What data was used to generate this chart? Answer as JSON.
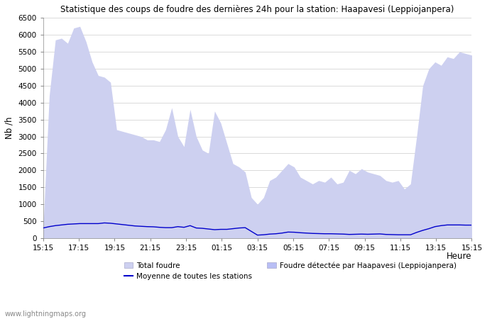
{
  "title": "Statistique des coups de foudre des dernières 24h pour la station: Haapavesi (Leppiojanpera)",
  "xlabel": "Heure",
  "ylabel": "Nb /h",
  "ylim": [
    0,
    6500
  ],
  "yticks": [
    0,
    500,
    1000,
    1500,
    2000,
    2500,
    3000,
    3500,
    4000,
    4500,
    5000,
    5500,
    6000,
    6500
  ],
  "xtick_labels": [
    "15:15",
    "17:15",
    "19:15",
    "21:15",
    "23:15",
    "01:15",
    "03:15",
    "05:15",
    "07:15",
    "09:15",
    "11:15",
    "13:15",
    "15:15"
  ],
  "color_total": "#cdd0f0",
  "color_local": "#b8bef5",
  "color_mean": "#0000cc",
  "watermark": "www.lightningmaps.org",
  "legend_labels": [
    "Total foudre",
    "Moyenne de toutes les stations",
    "Foudre détectée par Haapavesi (Leppiojanpera)"
  ],
  "total_foudre": [
    300,
    4200,
    5850,
    5900,
    5750,
    6200,
    6250,
    5800,
    5200,
    4800,
    4750,
    4600,
    3200,
    3150,
    3100,
    3050,
    3000,
    2900,
    2900,
    2850,
    3200,
    3850,
    3000,
    2700,
    3800,
    3000,
    2600,
    2500,
    3750,
    3400,
    2800,
    2200,
    2100,
    1950,
    1200,
    1000,
    1200,
    1700,
    1800,
    2000,
    2200,
    2100,
    1800,
    1700,
    1600,
    1700,
    1650,
    1800,
    1600,
    1650,
    2000,
    1900,
    2050,
    1950,
    1900,
    1850,
    1700,
    1650,
    1700,
    1450,
    1600,
    3000,
    4500,
    5000,
    5200,
    5100,
    5350,
    5300,
    5500,
    5450,
    5400
  ],
  "mean_line": [
    300,
    340,
    370,
    390,
    410,
    420,
    430,
    430,
    430,
    430,
    450,
    440,
    420,
    400,
    380,
    360,
    350,
    340,
    335,
    320,
    310,
    310,
    340,
    320,
    370,
    300,
    290,
    270,
    250,
    260,
    260,
    280,
    300,
    310,
    200,
    90,
    100,
    120,
    130,
    150,
    180,
    175,
    160,
    150,
    140,
    135,
    130,
    130,
    125,
    120,
    110,
    115,
    120,
    115,
    120,
    125,
    110,
    105,
    100,
    100,
    100,
    170,
    230,
    280,
    340,
    370,
    390,
    390,
    390,
    385,
    385
  ]
}
